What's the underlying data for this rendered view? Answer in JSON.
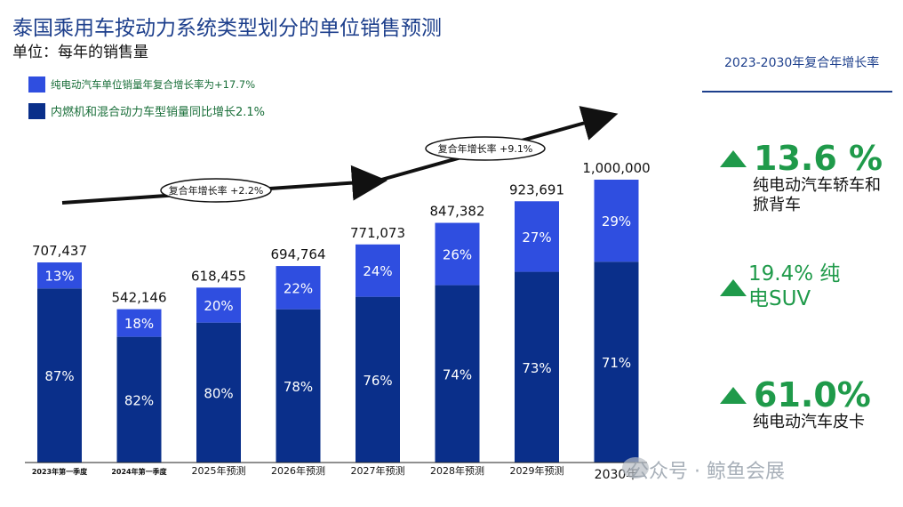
{
  "title": "泰国乘用车按动力系统类型划分的单位销售预测",
  "unit_label": "单位：每年的销售量",
  "legend": [
    {
      "label": "纯电动汽车单位销量年复合增长率为+17.7%",
      "color": "#2f4ee0"
    },
    {
      "label": "内燃机和混合动力车型销量同比增长2.1%",
      "color": "#0a2f8a"
    }
  ],
  "cagr_header": "2023-2030年复合年增长率",
  "stats": [
    {
      "value": "13.6 %",
      "desc_line1": "纯电动汽车轿车和",
      "desc_line2": "掀背车"
    },
    {
      "value": "19.4% 纯电SUV"
    },
    {
      "value": "61.0%",
      "desc_line1": "纯电动汽车皮卡"
    }
  ],
  "annotations": {
    "cagr_left": "复合年增长率 +2.2%",
    "cagr_right": "复合年增长率 +9.1%"
  },
  "watermark": "公众号 · 鲸鱼会展",
  "chart_data": {
    "type": "bar",
    "stacked": true,
    "title": "泰国乘用车按动力系统类型划分的单位销售预测",
    "ylabel": "单位：每年的销售量",
    "ylim": [
      0,
      1000000
    ],
    "categories": [
      "2023年第一季度",
      "2024年第一季度",
      "2025年预测",
      "2026年预测",
      "2027年预测",
      "2028年预测",
      "2029年预测",
      "2030年"
    ],
    "totals": [
      707437,
      542146,
      618455,
      694764,
      771073,
      847382,
      923691,
      1000000
    ],
    "total_labels": [
      "707,437",
      "542,146",
      "618,455",
      "694,764",
      "771,073",
      "847,382",
      "923,691",
      "1,000,000"
    ],
    "series": [
      {
        "name": "内燃机和混合动力",
        "color": "#0a2f8a",
        "share_pct": [
          87,
          82,
          80,
          78,
          76,
          74,
          73,
          71
        ],
        "labels": [
          "87%",
          "82%",
          "80%",
          "78%",
          "76%",
          "74%",
          "73%",
          "71%"
        ]
      },
      {
        "name": "纯电动汽车",
        "color": "#2f4ee0",
        "share_pct": [
          13,
          18,
          20,
          22,
          24,
          26,
          27,
          29
        ],
        "labels": [
          "13%",
          "18%",
          "20%",
          "22%",
          "24%",
          "26%",
          "27%",
          "29%"
        ]
      }
    ]
  }
}
